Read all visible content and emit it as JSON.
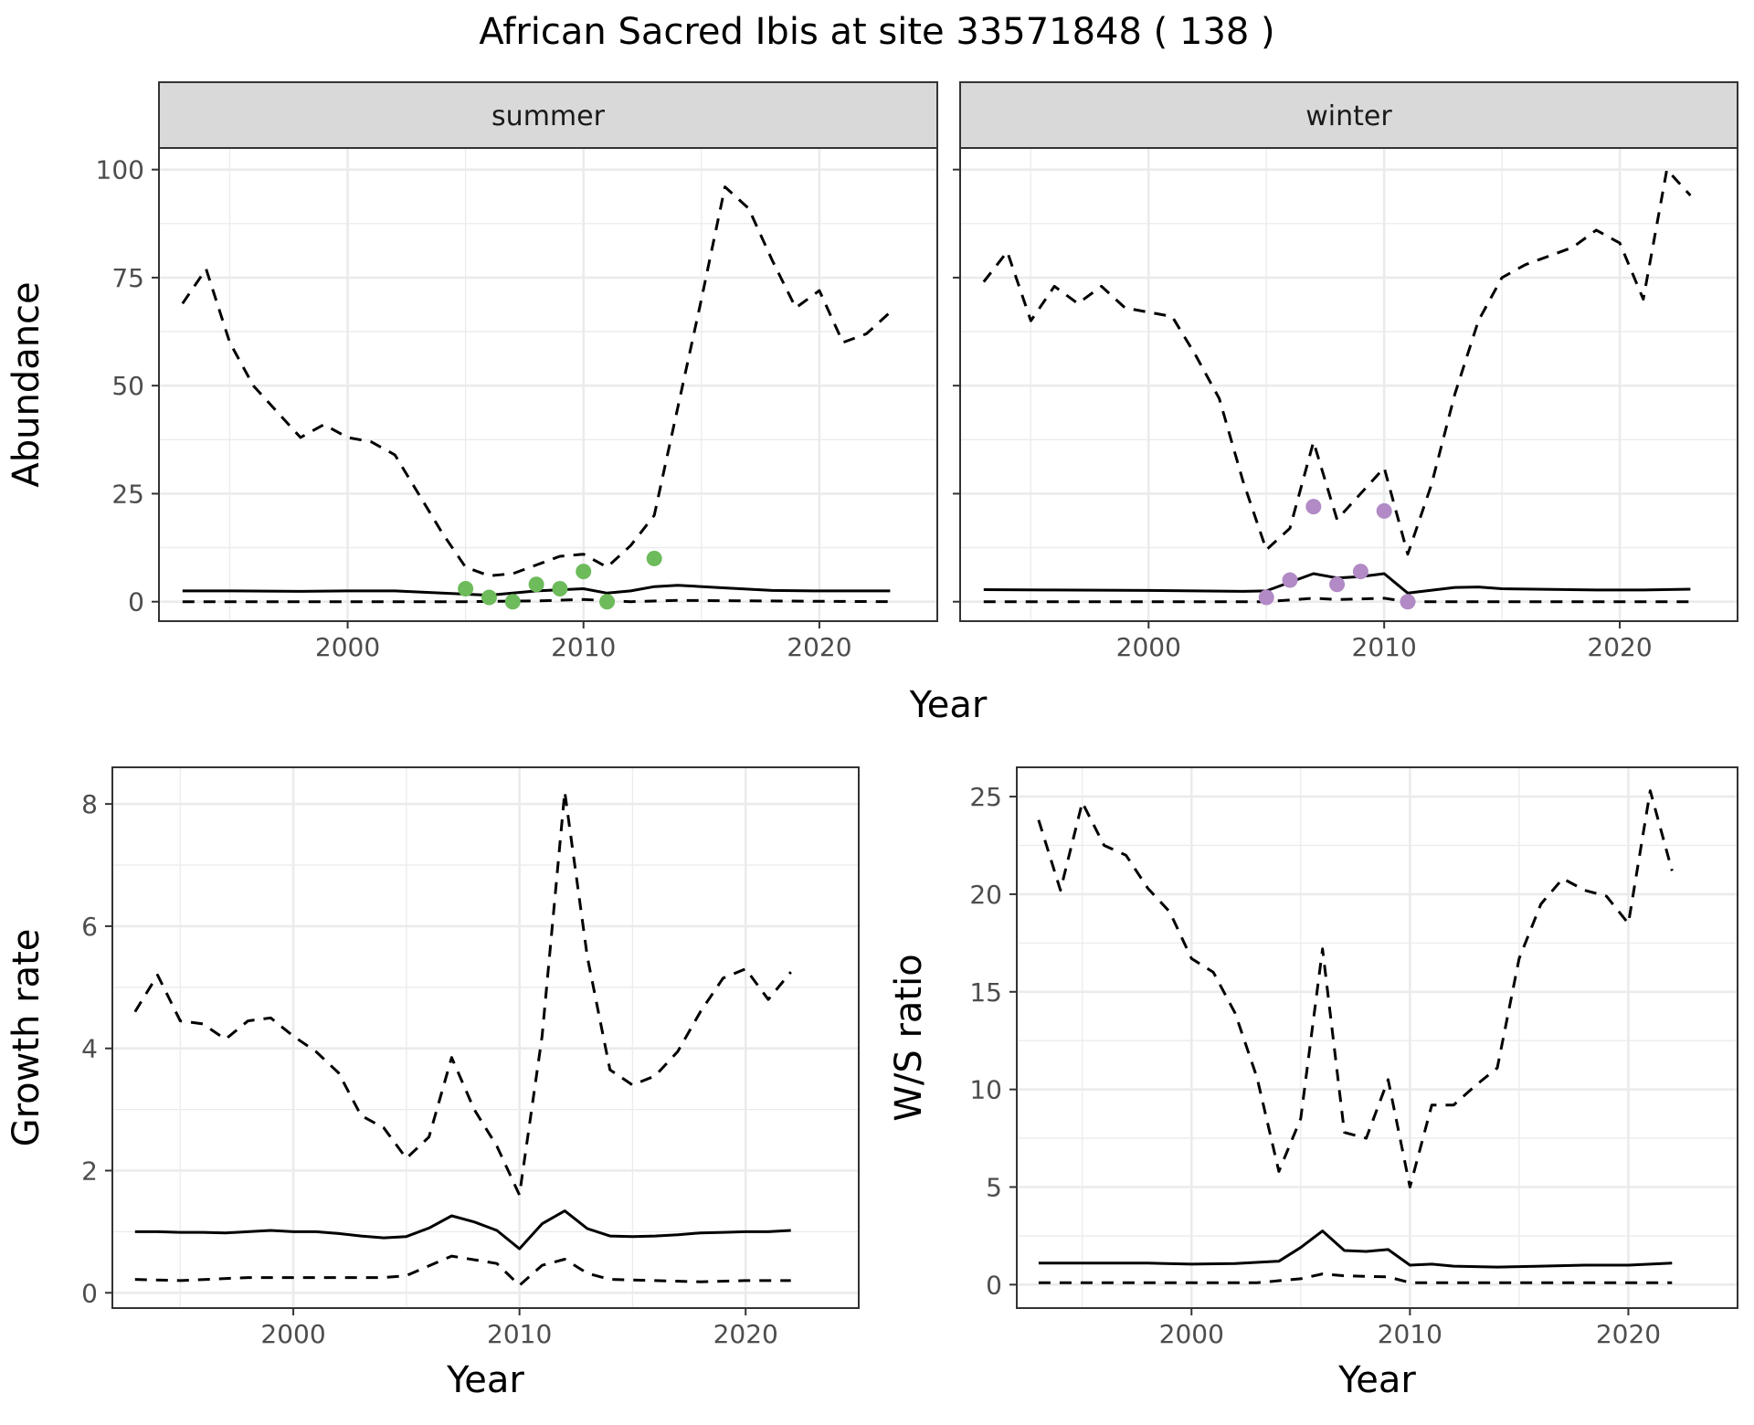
{
  "title": "African Sacred Ibis at site 33571848 ( 138 )",
  "colors": {
    "summer_points": "#6dbb5b",
    "winter_points": "#b18ac6",
    "lines": "#000000",
    "strip": "#d9d9d9",
    "grid": "#ebebeb"
  },
  "chart_data": [
    {
      "type": "line",
      "panel": "summer",
      "strip_label": "summer",
      "xlabel": "Year",
      "ylabel": "Abundance",
      "xlim": [
        1992,
        2025
      ],
      "ylim": [
        -4.5,
        105
      ],
      "x_ticks": [
        2000,
        2010,
        2020
      ],
      "y_ticks": [
        0,
        25,
        50,
        75,
        100
      ],
      "grid": true,
      "series": [
        {
          "style": "solid",
          "x": [
            1993,
            1995,
            1998,
            2000,
            2002,
            2004,
            2006,
            2008,
            2010,
            2011,
            2012,
            2013,
            2014,
            2016,
            2018,
            2020,
            2023
          ],
          "y": [
            2.5,
            2.5,
            2.4,
            2.5,
            2.5,
            2.0,
            1.5,
            2.5,
            3.0,
            2.0,
            2.5,
            3.5,
            3.8,
            3.2,
            2.6,
            2.5,
            2.5
          ]
        },
        {
          "style": "dashed",
          "x": [
            1993,
            1994,
            1995,
            1996,
            1997,
            1998,
            1999,
            2000,
            2001,
            2002,
            2003,
            2004,
            2005,
            2006,
            2007,
            2008,
            2009,
            2010,
            2011,
            2012,
            2013,
            2014,
            2015,
            2016,
            2017,
            2018,
            2019,
            2020,
            2021,
            2022,
            2023
          ],
          "y": [
            69,
            77,
            60,
            50,
            44,
            38,
            41,
            38,
            37,
            34,
            25,
            16,
            8,
            6,
            6.5,
            8.5,
            10.5,
            11,
            8,
            13,
            20,
            45,
            70,
            96,
            91,
            79,
            68,
            72,
            60,
            62,
            67
          ]
        },
        {
          "style": "dashed",
          "x": [
            1993,
            2005,
            2008,
            2010,
            2012,
            2014,
            2023
          ],
          "y": [
            0,
            0,
            0.2,
            0.5,
            0,
            0.3,
            0
          ]
        }
      ],
      "points": {
        "color": "summer_points",
        "x": [
          2005,
          2006,
          2007,
          2008,
          2009,
          2010,
          2011,
          2013
        ],
        "y": [
          3,
          1,
          0,
          4,
          3,
          7,
          0,
          10
        ]
      }
    },
    {
      "type": "line",
      "panel": "winter",
      "strip_label": "winter",
      "xlabel": "Year",
      "xlim": [
        1992,
        2025
      ],
      "ylim": [
        -4.5,
        105
      ],
      "x_ticks": [
        2000,
        2010,
        2020
      ],
      "y_ticks": [
        0,
        25,
        50,
        75,
        100
      ],
      "grid": true,
      "series": [
        {
          "style": "solid",
          "x": [
            1993,
            1996,
            2000,
            2004,
            2005,
            2006,
            2007,
            2008,
            2009,
            2010,
            2011,
            2013,
            2014,
            2015,
            2019,
            2021,
            2023
          ],
          "y": [
            2.8,
            2.7,
            2.6,
            2.4,
            2.5,
            4.5,
            6.5,
            5.5,
            5.8,
            6.5,
            2,
            3.3,
            3.4,
            3.0,
            2.7,
            2.7,
            2.9
          ]
        },
        {
          "style": "dashed",
          "x": [
            1993,
            1994,
            1995,
            1996,
            1997,
            1998,
            1999,
            2000,
            2001,
            2002,
            2003,
            2004,
            2005,
            2006,
            2007,
            2008,
            2009,
            2010,
            2011,
            2012,
            2013,
            2014,
            2015,
            2016,
            2017,
            2018,
            2019,
            2020,
            2021,
            2022,
            2023
          ],
          "y": [
            74,
            81,
            65,
            73,
            69,
            73,
            68,
            67,
            66,
            57,
            47,
            28,
            12,
            17,
            37,
            19,
            25,
            31,
            11,
            27,
            48,
            65,
            75,
            78,
            80,
            82,
            86,
            83,
            70,
            100,
            94
          ]
        },
        {
          "style": "dashed",
          "x": [
            1993,
            2005,
            2007,
            2008,
            2010,
            2011,
            2023
          ],
          "y": [
            0,
            0,
            0.8,
            0.5,
            0.8,
            0,
            0
          ]
        }
      ],
      "points": {
        "color": "winter_points",
        "x": [
          2005,
          2006,
          2007,
          2008,
          2009,
          2010,
          2011
        ],
        "y": [
          1,
          5,
          22,
          4,
          7,
          21,
          0
        ]
      }
    },
    {
      "type": "line",
      "panel": "growth",
      "xlabel": "Year",
      "ylabel": "Growth rate",
      "xlim": [
        1992,
        2025
      ],
      "ylim": [
        -0.25,
        8.6
      ],
      "x_ticks": [
        2000,
        2010,
        2020
      ],
      "y_ticks": [
        0,
        2,
        4,
        6,
        8
      ],
      "grid": true,
      "series": [
        {
          "style": "solid",
          "x": [
            1993,
            1994,
            1995,
            1996,
            1997,
            1998,
            1999,
            2000,
            2001,
            2002,
            2003,
            2004,
            2005,
            2006,
            2007,
            2008,
            2009,
            2010,
            2011,
            2012,
            2013,
            2014,
            2015,
            2016,
            2017,
            2018,
            2019,
            2020,
            2021,
            2022
          ],
          "y": [
            1.0,
            1.0,
            0.99,
            0.99,
            0.98,
            1.0,
            1.02,
            1.0,
            1.0,
            0.97,
            0.93,
            0.9,
            0.92,
            1.06,
            1.26,
            1.16,
            1.02,
            0.72,
            1.13,
            1.34,
            1.05,
            0.93,
            0.92,
            0.93,
            0.95,
            0.98,
            0.99,
            1.0,
            1.0,
            1.02
          ]
        },
        {
          "style": "dashed",
          "x": [
            1993,
            1994,
            1995,
            1996,
            1997,
            1998,
            1999,
            2000,
            2001,
            2002,
            2003,
            2004,
            2005,
            2006,
            2007,
            2008,
            2009,
            2010,
            2011,
            2012,
            2013,
            2014,
            2015,
            2016,
            2017,
            2018,
            2019,
            2020,
            2021,
            2022
          ],
          "y": [
            4.6,
            5.2,
            4.45,
            4.4,
            4.15,
            4.45,
            4.5,
            4.2,
            3.95,
            3.6,
            2.9,
            2.7,
            2.2,
            2.55,
            3.85,
            3.0,
            2.4,
            1.6,
            4.2,
            8.2,
            5.5,
            3.65,
            3.4,
            3.55,
            3.95,
            4.6,
            5.15,
            5.3,
            4.8,
            5.25
          ]
        },
        {
          "style": "dashed",
          "x": [
            1993,
            1995,
            1998,
            2000,
            2004,
            2005,
            2007,
            2009,
            2010,
            2011,
            2012,
            2013,
            2014,
            2016,
            2018,
            2020,
            2022
          ],
          "y": [
            0.22,
            0.2,
            0.25,
            0.25,
            0.25,
            0.28,
            0.6,
            0.48,
            0.12,
            0.45,
            0.55,
            0.32,
            0.22,
            0.2,
            0.18,
            0.2,
            0.2
          ]
        }
      ]
    },
    {
      "type": "line",
      "panel": "ratio",
      "xlabel": "Year",
      "ylabel": "W/S ratio",
      "xlim": [
        1992,
        2025
      ],
      "ylim": [
        -1.2,
        26.5
      ],
      "x_ticks": [
        2000,
        2010,
        2020
      ],
      "y_ticks": [
        0,
        5,
        10,
        15,
        20,
        25
      ],
      "grid": true,
      "series": [
        {
          "style": "solid",
          "x": [
            1993,
            1995,
            1998,
            2000,
            2002,
            2004,
            2005,
            2006,
            2007,
            2008,
            2009,
            2010,
            2011,
            2012,
            2014,
            2016,
            2018,
            2020,
            2022
          ],
          "y": [
            1.1,
            1.1,
            1.1,
            1.05,
            1.08,
            1.2,
            1.9,
            2.75,
            1.75,
            1.7,
            1.8,
            1.0,
            1.05,
            0.95,
            0.9,
            0.95,
            1.0,
            1.0,
            1.1
          ]
        },
        {
          "style": "dashed",
          "x": [
            1993,
            1994,
            1995,
            1996,
            1997,
            1998,
            1999,
            2000,
            2001,
            2002,
            2003,
            2004,
            2005,
            2006,
            2007,
            2008,
            2009,
            2010,
            2011,
            2012,
            2013,
            2014,
            2015,
            2016,
            2017,
            2018,
            2019,
            2020,
            2021,
            2022
          ],
          "y": [
            23.8,
            20.2,
            24.7,
            22.5,
            22.0,
            20.3,
            19.1,
            16.7,
            16.0,
            13.9,
            10.6,
            5.8,
            8.5,
            17.2,
            7.8,
            7.5,
            10.5,
            5.0,
            9.2,
            9.2,
            10.2,
            11.1,
            16.7,
            19.5,
            20.8,
            20.2,
            19.9,
            18.5,
            25.3,
            21.2
          ]
        },
        {
          "style": "dashed",
          "x": [
            1993,
            2000,
            2003,
            2005,
            2006,
            2007,
            2009,
            2010,
            2011,
            2014,
            2018,
            2022
          ],
          "y": [
            0.1,
            0.1,
            0.1,
            0.3,
            0.55,
            0.45,
            0.4,
            0.1,
            0.1,
            0.1,
            0.1,
            0.1
          ]
        }
      ]
    }
  ]
}
